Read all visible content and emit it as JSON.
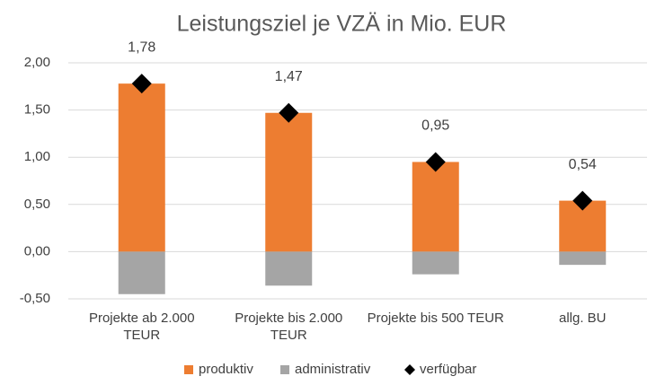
{
  "chart_data": {
    "type": "bar",
    "title": "Leistungsziel je VZÄ in Mio. EUR",
    "categories": [
      "Projekte ab 2.000 TEUR",
      "Projekte bis 2.000 TEUR",
      "Projekte bis 500 TEUR",
      "allg. BU"
    ],
    "series": [
      {
        "name": "produktiv",
        "color": "#ed7d31",
        "kind": "bar",
        "values": [
          1.78,
          1.47,
          0.95,
          0.54
        ]
      },
      {
        "name": "administrativ",
        "color": "#a5a5a5",
        "kind": "bar",
        "values": [
          -0.45,
          -0.36,
          -0.24,
          -0.14
        ]
      },
      {
        "name": "verfügbar",
        "color": "#000000",
        "kind": "marker",
        "values": [
          1.78,
          1.47,
          0.95,
          0.54
        ],
        "value_labels": [
          "1,78",
          "1,47",
          "0,95",
          "0,54"
        ]
      }
    ],
    "ylim": [
      -0.5,
      2.0
    ],
    "yticks": [
      {
        "value": -0.5,
        "label": "-0,50"
      },
      {
        "value": 0,
        "label": "0,00"
      },
      {
        "value": 0.5,
        "label": "0,50"
      },
      {
        "value": 1.0,
        "label": "1,00"
      },
      {
        "value": 1.5,
        "label": "1,50"
      },
      {
        "value": 2.0,
        "label": "2,00"
      }
    ],
    "grid": true,
    "legend": "bottom"
  }
}
